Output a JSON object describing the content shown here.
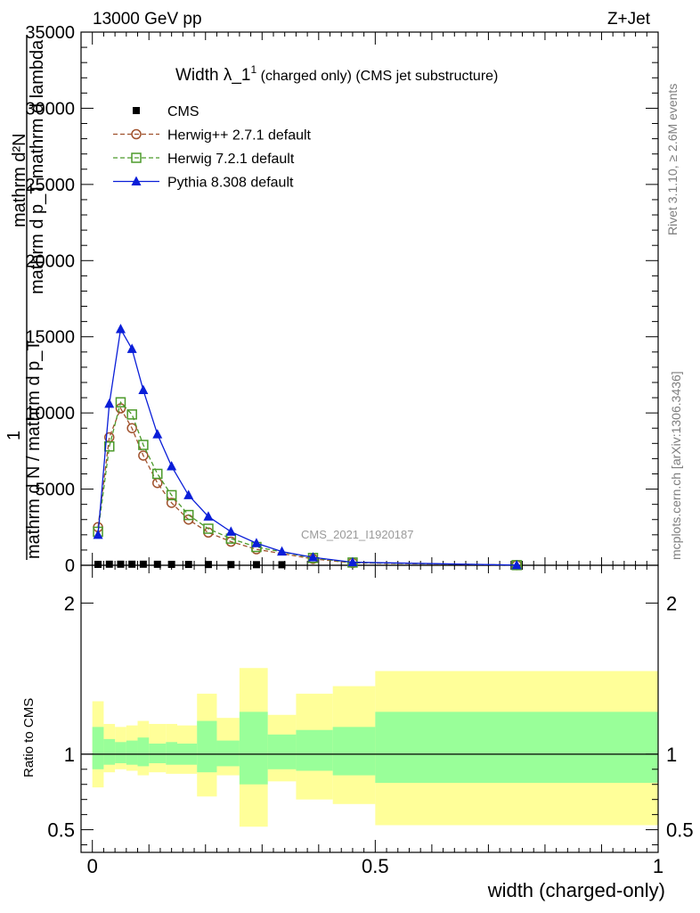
{
  "header": {
    "left": "13000 GeV pp",
    "right": "Z+Jet"
  },
  "side_labels": {
    "rivet": "Rivet 3.1.10, ≥ 2.6M events",
    "mcplots": "mcplots.cern.ch [arXiv:1306.3436]"
  },
  "watermark": "CMS_2021_I1920187",
  "colors": {
    "cms": "#000000",
    "herwigpp": "#a0522d",
    "herwig7": "#4c9a2a",
    "pythia": "#0a1ed8",
    "band_yellow": "#ffff99",
    "band_green": "#99ff99"
  },
  "chart_data": [
    {
      "type": "line",
      "title_main": "Width λ_1",
      "title_sup": "1",
      "title_rest": " (charged only) (CMS jet substructure)",
      "ylabel_line1": "mathrm d²N",
      "ylabel_line2": "mathrm d p_T mathrm d lambda",
      "ylabel_one": "1",
      "ylabel_den": "mathrm d N / mathrm d p_T",
      "xlim": [
        -0.02,
        1.0
      ],
      "ylim": [
        0,
        35000
      ],
      "y_ticks": [
        0,
        5000,
        10000,
        15000,
        20000,
        25000,
        30000,
        35000
      ],
      "y_tick_labels": [
        "0",
        "5000",
        "10000",
        "15000",
        "20000",
        "25000",
        "30000",
        "35000"
      ],
      "legend_position": "top-left",
      "series": [
        {
          "name": "CMS",
          "marker": "square",
          "x": [
            0.01,
            0.03,
            0.05,
            0.07,
            0.09,
            0.115,
            0.14,
            0.17,
            0.205,
            0.245,
            0.29,
            0.335
          ],
          "y": [
            60,
            70,
            70,
            70,
            70,
            65,
            60,
            55,
            50,
            45,
            40,
            35
          ]
        },
        {
          "name": "Herwig++ 2.7.1 default",
          "marker": "circle",
          "dash": true,
          "x": [
            0.01,
            0.03,
            0.05,
            0.07,
            0.09,
            0.115,
            0.14,
            0.17,
            0.205,
            0.245,
            0.29,
            0.39,
            0.46,
            0.75
          ],
          "y": [
            2500,
            8400,
            10300,
            9000,
            7200,
            5400,
            4100,
            3000,
            2150,
            1550,
            1050,
            420,
            160,
            10
          ]
        },
        {
          "name": "Herwig 7.2.1 default",
          "marker": "open-square",
          "dash": true,
          "x": [
            0.01,
            0.03,
            0.05,
            0.07,
            0.09,
            0.115,
            0.14,
            0.17,
            0.205,
            0.245,
            0.29,
            0.39,
            0.46,
            0.75
          ],
          "y": [
            2200,
            7800,
            10700,
            9900,
            7900,
            6000,
            4600,
            3300,
            2400,
            1750,
            1200,
            480,
            180,
            10
          ]
        },
        {
          "name": "Pythia 8.308 default",
          "marker": "triangle",
          "dash": false,
          "x": [
            0.01,
            0.03,
            0.05,
            0.07,
            0.09,
            0.115,
            0.14,
            0.17,
            0.205,
            0.245,
            0.29,
            0.335,
            0.39,
            0.46,
            0.75
          ],
          "y": [
            2000,
            10600,
            15500,
            14200,
            11500,
            8600,
            6500,
            4600,
            3200,
            2200,
            1450,
            900,
            520,
            200,
            10
          ]
        }
      ]
    },
    {
      "type": "area",
      "ylabel": "Ratio to CMS",
      "xlabel": "width (charged-only)",
      "xlim": [
        -0.02,
        1.0
      ],
      "ylim": [
        0.35,
        2.25
      ],
      "x_ticks": [
        0,
        0.5,
        1
      ],
      "x_tick_labels": [
        "0",
        "0.5",
        "1"
      ],
      "y_ticks": [
        0.5,
        1,
        2
      ],
      "y_tick_labels": [
        "0.5",
        "1",
        "2"
      ],
      "reference_line": 1,
      "bins": [
        {
          "lo": 0.0,
          "hi": 0.02,
          "y_lo": 0.78,
          "y_hi": 1.35,
          "g_lo": 0.9,
          "g_hi": 1.18
        },
        {
          "lo": 0.02,
          "hi": 0.04,
          "y_lo": 0.88,
          "y_hi": 1.2,
          "g_lo": 0.93,
          "g_hi": 1.1
        },
        {
          "lo": 0.04,
          "hi": 0.06,
          "y_lo": 0.9,
          "y_hi": 1.18,
          "g_lo": 0.94,
          "g_hi": 1.08
        },
        {
          "lo": 0.06,
          "hi": 0.08,
          "y_lo": 0.89,
          "y_hi": 1.19,
          "g_lo": 0.93,
          "g_hi": 1.09
        },
        {
          "lo": 0.08,
          "hi": 0.1,
          "y_lo": 0.86,
          "y_hi": 1.22,
          "g_lo": 0.92,
          "g_hi": 1.11
        },
        {
          "lo": 0.1,
          "hi": 0.13,
          "y_lo": 0.88,
          "y_hi": 1.2,
          "g_lo": 0.94,
          "g_hi": 1.07
        },
        {
          "lo": 0.13,
          "hi": 0.15,
          "y_lo": 0.87,
          "y_hi": 1.2,
          "g_lo": 0.93,
          "g_hi": 1.08
        },
        {
          "lo": 0.15,
          "hi": 0.185,
          "y_lo": 0.87,
          "y_hi": 1.19,
          "g_lo": 0.93,
          "g_hi": 1.07
        },
        {
          "lo": 0.185,
          "hi": 0.22,
          "y_lo": 0.72,
          "y_hi": 1.4,
          "g_lo": 0.88,
          "g_hi": 1.22
        },
        {
          "lo": 0.22,
          "hi": 0.26,
          "y_lo": 0.86,
          "y_hi": 1.24,
          "g_lo": 0.92,
          "g_hi": 1.09
        },
        {
          "lo": 0.26,
          "hi": 0.31,
          "y_lo": 0.52,
          "y_hi": 1.57,
          "g_lo": 0.8,
          "g_hi": 1.28
        },
        {
          "lo": 0.31,
          "hi": 0.36,
          "y_lo": 0.82,
          "y_hi": 1.26,
          "g_lo": 0.9,
          "g_hi": 1.13
        },
        {
          "lo": 0.36,
          "hi": 0.425,
          "y_lo": 0.7,
          "y_hi": 1.4,
          "g_lo": 0.89,
          "g_hi": 1.16
        },
        {
          "lo": 0.425,
          "hi": 0.5,
          "y_lo": 0.67,
          "y_hi": 1.45,
          "g_lo": 0.86,
          "g_hi": 1.18
        },
        {
          "lo": 0.5,
          "hi": 1.0,
          "y_lo": 0.53,
          "y_hi": 1.55,
          "g_lo": 0.81,
          "g_hi": 1.28
        }
      ]
    }
  ]
}
